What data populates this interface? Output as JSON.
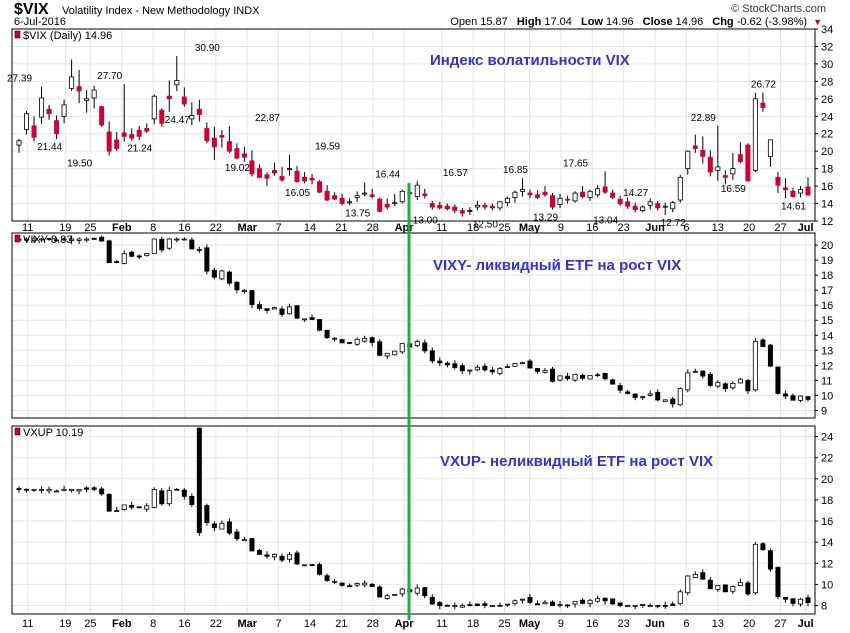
{
  "header": {
    "symbol": "$VIX",
    "name": "Volatility Index - New Methodology  INDX",
    "date": "6-Jul-2016",
    "brand": "© StockCharts.com",
    "open_label": "Open",
    "open": "15.87",
    "high_label": "High",
    "high": "17.04",
    "low_label": "Low",
    "low": "14.96",
    "close_label": "Close",
    "close": "14.96",
    "chg_label": "Chg",
    "chg": "-0.62 (-3.98%)"
  },
  "colors": {
    "up": "#ffffff",
    "down": "#cc0033",
    "black": "#000000",
    "marker": "#22aa44",
    "annotation": "#3333cc",
    "grid": "#e6e6e6"
  },
  "chart_data": [
    {
      "type": "candlestick",
      "panel_label": "$VIX (Daily) 14.96",
      "annotation": "Индекс волатильности VIX",
      "ylim": [
        12,
        34
      ],
      "yticks": [
        12,
        14,
        16,
        18,
        20,
        22,
        24,
        26,
        28,
        30,
        32,
        34
      ],
      "down_color": "red",
      "price_labels": [
        {
          "text": "27.39",
          "x": "Jan 12",
          "y": 27.4
        },
        {
          "text": "21.44",
          "x": "Jan 14",
          "y": 21.4
        },
        {
          "text": "19.50",
          "x": "Jan 29",
          "y": 19.5
        },
        {
          "text": "27.70",
          "x": "Feb 1",
          "y": 27.7
        },
        {
          "text": "21.24",
          "x": "Feb 3",
          "y": 21.2
        },
        {
          "text": "24.47",
          "x": "Feb 9",
          "y": 24.5
        },
        {
          "text": "30.90",
          "x": "Feb 11",
          "y": 30.9
        },
        {
          "text": "19.02",
          "x": "Feb 19",
          "y": 19.0
        },
        {
          "text": "22.87",
          "x": "Feb 22",
          "y": 22.9
        },
        {
          "text": "16.05",
          "x": "Mar 4",
          "y": 16.1
        },
        {
          "text": "19.59",
          "x": "Mar 8",
          "y": 19.6
        },
        {
          "text": "13.75",
          "x": "Mar 22",
          "y": 13.8
        },
        {
          "text": "16.44",
          "x": "Mar 28",
          "y": 16.4
        },
        {
          "text": "13.00",
          "x": "Apr 1",
          "y": 13.0
        },
        {
          "text": "16.57",
          "x": "Apr 7",
          "y": 16.6
        },
        {
          "text": "12.50",
          "x": "Apr 19",
          "y": 12.5
        },
        {
          "text": "16.85",
          "x": "May 4",
          "y": 16.9
        },
        {
          "text": "13.29",
          "x": "May 13",
          "y": 13.3
        },
        {
          "text": "17.65",
          "x": "May 20",
          "y": 17.7
        },
        {
          "text": "13.04",
          "x": "May 31",
          "y": 13.0
        },
        {
          "text": "14.27",
          "x": "Jun 3",
          "y": 14.3
        },
        {
          "text": "12.72",
          "x": "Jun 8",
          "y": 12.7
        },
        {
          "text": "22.89",
          "x": "Jun 16",
          "y": 22.9
        },
        {
          "text": "16.59",
          "x": "Jun 21",
          "y": 16.6
        },
        {
          "text": "26.72",
          "x": "Jun 27",
          "y": 26.7
        },
        {
          "text": "14.61",
          "x": "Jul 5",
          "y": 14.6
        }
      ],
      "points": [
        [
          20.7,
          21.4,
          19.8,
          21.2
        ],
        [
          22.5,
          24.6,
          21.9,
          24.3
        ],
        [
          22.9,
          24.0,
          21.1,
          21.6
        ],
        [
          23.9,
          27.4,
          23.1,
          26.1
        ],
        [
          24.8,
          25.3,
          23.6,
          24.3
        ],
        [
          23.5,
          24.1,
          21.4,
          22.0
        ],
        [
          24.0,
          25.9,
          23.2,
          25.3
        ],
        [
          27.2,
          30.5,
          26.9,
          28.5
        ],
        [
          27.4,
          29.3,
          25.5,
          26.9
        ],
        [
          25.8,
          27.0,
          24.4,
          26.0
        ],
        [
          26.1,
          27.5,
          24.9,
          27.0
        ],
        [
          25.1,
          25.2,
          22.8,
          23.0
        ],
        [
          22.2,
          23.4,
          19.5,
          20.0
        ],
        [
          21.3,
          22.2,
          20.0,
          20.3
        ],
        [
          22.1,
          27.7,
          21.1,
          21.7
        ],
        [
          21.9,
          22.6,
          21.2,
          21.5
        ],
        [
          22.4,
          22.9,
          21.3,
          21.7
        ],
        [
          22.6,
          23.2,
          22.1,
          22.3
        ],
        [
          23.7,
          26.5,
          23.1,
          26.3
        ],
        [
          24.7,
          24.9,
          22.8,
          23.2
        ],
        [
          26.3,
          28.1,
          24.5,
          26.0
        ],
        [
          27.6,
          30.9,
          26.9,
          28.1
        ],
        [
          26.2,
          27.3,
          25.1,
          25.4
        ],
        [
          23.7,
          25.6,
          23.0,
          24.1
        ],
        [
          24.8,
          25.9,
          23.4,
          24.2
        ],
        [
          22.6,
          23.3,
          20.9,
          21.2
        ],
        [
          21.5,
          22.8,
          19.0,
          20.5
        ],
        [
          21.8,
          22.4,
          20.4,
          21.6
        ],
        [
          21.1,
          22.9,
          19.8,
          20.0
        ],
        [
          20.3,
          20.9,
          19.1,
          19.2
        ],
        [
          19.7,
          20.5,
          18.8,
          19.3
        ],
        [
          18.9,
          20.1,
          17.1,
          17.4
        ],
        [
          18.0,
          18.5,
          16.9,
          17.0
        ],
        [
          17.3,
          17.6,
          16.0,
          16.9
        ],
        [
          17.8,
          18.7,
          17.2,
          17.5
        ],
        [
          17.1,
          18.2,
          16.5,
          16.7
        ],
        [
          17.9,
          19.6,
          17.2,
          18.0
        ],
        [
          17.7,
          18.3,
          16.4,
          16.5
        ],
        [
          17.0,
          17.6,
          16.3,
          16.6
        ],
        [
          16.9,
          17.4,
          16.2,
          16.7
        ],
        [
          16.5,
          16.7,
          15.2,
          15.3
        ],
        [
          15.4,
          16.1,
          14.3,
          14.4
        ],
        [
          14.9,
          15.3,
          14.4,
          14.5
        ],
        [
          14.6,
          15.1,
          13.8,
          14.0
        ],
        [
          14.2,
          14.6,
          13.8,
          14.2
        ],
        [
          14.7,
          15.4,
          14.2,
          14.9
        ],
        [
          15.2,
          16.4,
          14.8,
          15.2
        ],
        [
          15.0,
          15.7,
          14.6,
          14.8
        ],
        [
          14.5,
          14.7,
          13.0,
          13.1
        ],
        [
          13.9,
          14.6,
          13.3,
          13.6
        ],
        [
          14.1,
          15.1,
          13.7,
          14.1
        ],
        [
          14.2,
          15.6,
          14.0,
          15.4
        ],
        [
          15.3,
          15.9,
          14.7,
          15.1
        ],
        [
          14.8,
          16.6,
          14.4,
          16.1
        ],
        [
          15.1,
          15.7,
          14.6,
          14.9
        ],
        [
          14.0,
          14.3,
          13.3,
          13.6
        ],
        [
          13.8,
          14.2,
          13.3,
          13.5
        ],
        [
          13.7,
          14.0,
          13.2,
          13.4
        ],
        [
          13.6,
          13.9,
          12.9,
          13.2
        ],
        [
          13.2,
          13.5,
          12.5,
          12.9
        ],
        [
          13.1,
          13.6,
          12.7,
          13.2
        ],
        [
          13.6,
          14.3,
          13.2,
          13.8
        ],
        [
          13.8,
          14.1,
          13.3,
          13.6
        ],
        [
          13.7,
          14.0,
          13.2,
          13.5
        ],
        [
          13.5,
          14.3,
          13.2,
          14.2
        ],
        [
          14.1,
          14.8,
          13.7,
          14.6
        ],
        [
          14.7,
          15.5,
          14.1,
          15.3
        ],
        [
          15.4,
          16.9,
          14.8,
          15.6
        ],
        [
          15.2,
          15.6,
          14.6,
          15.0
        ],
        [
          15.0,
          15.5,
          14.5,
          14.7
        ],
        [
          15.3,
          16.0,
          14.8,
          15.0
        ],
        [
          14.9,
          15.2,
          13.3,
          13.6
        ],
        [
          13.9,
          15.1,
          13.5,
          14.6
        ],
        [
          14.5,
          14.9,
          14.0,
          14.4
        ],
        [
          14.3,
          15.4,
          14.1,
          15.2
        ],
        [
          15.3,
          16.0,
          14.6,
          14.8
        ],
        [
          14.7,
          15.6,
          14.3,
          15.4
        ],
        [
          15.0,
          16.1,
          14.7,
          15.7
        ],
        [
          15.9,
          17.7,
          15.1,
          15.3
        ],
        [
          15.2,
          15.6,
          14.5,
          14.7
        ],
        [
          14.5,
          14.9,
          13.7,
          14.0
        ],
        [
          14.2,
          14.7,
          13.4,
          13.7
        ],
        [
          13.7,
          14.1,
          13.0,
          13.3
        ],
        [
          13.2,
          13.8,
          13.0,
          13.6
        ],
        [
          13.8,
          14.6,
          13.3,
          14.2
        ],
        [
          14.0,
          14.3,
          13.2,
          13.5
        ],
        [
          13.6,
          14.1,
          12.7,
          13.7
        ],
        [
          13.4,
          14.3,
          13.0,
          14.1
        ],
        [
          14.4,
          17.3,
          14.1,
          17.0
        ],
        [
          18.0,
          20.1,
          17.3,
          20.0
        ],
        [
          20.6,
          21.9,
          19.8,
          20.3
        ],
        [
          20.1,
          21.7,
          18.6,
          19.4
        ],
        [
          19.3,
          20.1,
          17.1,
          17.6
        ],
        [
          17.8,
          22.9,
          16.6,
          18.2
        ],
        [
          17.2,
          17.8,
          16.2,
          17.0
        ],
        [
          17.4,
          19.8,
          16.7,
          18.0
        ],
        [
          19.6,
          21.0,
          18.6,
          18.8
        ],
        [
          20.7,
          20.9,
          16.5,
          16.6
        ],
        [
          17.8,
          26.7,
          17.6,
          26.0
        ],
        [
          25.5,
          26.7,
          24.5,
          25.0
        ],
        [
          19.4,
          21.1,
          18.2,
          21.3
        ],
        [
          17.0,
          17.6,
          15.2,
          16.1
        ],
        [
          15.8,
          16.9,
          14.6,
          15.6
        ],
        [
          15.4,
          15.8,
          14.7,
          14.8
        ],
        [
          15.2,
          16.0,
          14.7,
          15.6
        ],
        [
          15.9,
          17.0,
          14.96,
          14.96
        ]
      ]
    },
    {
      "type": "candlestick",
      "panel_label": "VIXY 8.83",
      "annotation": "VIXY- ликвидный ETF на рост VIX",
      "ylim": [
        8.5,
        20.8
      ],
      "yticks": [
        9,
        10,
        11,
        12,
        13,
        14,
        15,
        16,
        17,
        18,
        19,
        20
      ]
    },
    {
      "type": "candlestick",
      "panel_label": "VXUP 10.19",
      "annotation": "VXUP- неликвидный ETF на рост VIX",
      "ylim": [
        7.2,
        25.0
      ],
      "yticks": [
        8,
        10,
        12,
        14,
        16,
        18,
        20,
        22,
        24
      ]
    }
  ],
  "x_axis": {
    "tick_labels": [
      "11",
      "19",
      "25",
      "Feb",
      "8",
      "16",
      "22",
      "Mar",
      "7",
      "14",
      "21",
      "28",
      "Apr",
      "11",
      "18",
      "25",
      "May",
      "9",
      "16",
      "23",
      "Jun",
      "6",
      "13",
      "20",
      "27",
      "Jul"
    ]
  }
}
